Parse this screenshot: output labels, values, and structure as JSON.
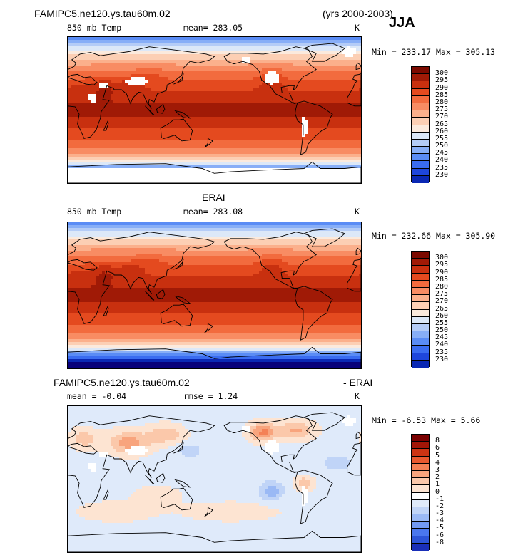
{
  "header": {
    "case_name": "FAMIPC5.ne120.ys.tau60m.02",
    "years": "(yrs 2000-2003)",
    "season": "JJA"
  },
  "colors": {
    "temp_scale": [
      "#08007a",
      "#0a28b4",
      "#1e46dc",
      "#3a6cf0",
      "#5a8cf5",
      "#87aef7",
      "#b4ccf7",
      "#dce8f8",
      "#fbeadd",
      "#fccfb4",
      "#fbb08c",
      "#f88c63",
      "#f26b3e",
      "#e44a1f",
      "#c8300f",
      "#a01a06",
      "#7c0a00"
    ],
    "diff_scale": [
      "#050579",
      "#1a2fb8",
      "#2d55d8",
      "#4a77ee",
      "#7299f2",
      "#9ab9f5",
      "#c0d4f7",
      "#dfeafa",
      "#ffffff",
      "#fde4d2",
      "#fbc8aa",
      "#f8a47d",
      "#f48156",
      "#e8592f",
      "#cc3413",
      "#a21607",
      "#7a0000"
    ]
  },
  "chart_data": [
    {
      "type": "heatmap",
      "title": "FAMIPC5.ne120.ys.tau60m.02",
      "panel_label": "850 mb Temp",
      "stat_text": "mean= 283.05",
      "units": "K",
      "minmax_text": "Min = 233.17  Max = 305.13",
      "min": 233.17,
      "max": 305.13,
      "mean": 283.05,
      "colorbar_levels": [
        "300",
        "295",
        "290",
        "285",
        "280",
        "275",
        "270",
        "265",
        "260",
        "255",
        "250",
        "245",
        "240",
        "235",
        "230"
      ]
    },
    {
      "type": "heatmap",
      "title": "ERAI",
      "panel_label": "850 mb Temp",
      "stat_text": "mean= 283.08",
      "units": "K",
      "minmax_text": "Min = 232.66  Max = 305.90",
      "min": 232.66,
      "max": 305.9,
      "mean": 283.08,
      "colorbar_levels": [
        "300",
        "295",
        "290",
        "285",
        "280",
        "275",
        "270",
        "265",
        "260",
        "255",
        "250",
        "245",
        "240",
        "235",
        "230"
      ]
    },
    {
      "type": "heatmap",
      "title_left": "FAMIPC5.ne120.ys.tau60m.02",
      "title_right": "- ERAI",
      "stat_text": "mean =   -0.04",
      "rmse_text": "rmse =    1.24",
      "units": "K",
      "minmax_text": "Min =   -6.53  Max =    5.66",
      "min": -6.53,
      "max": 5.66,
      "mean": -0.04,
      "rmse": 1.24,
      "colorbar_levels": [
        "8",
        "6",
        "5",
        "4",
        "3",
        "2",
        "1",
        "0",
        "-1",
        "-2",
        "-3",
        "-4",
        "-5",
        "-6",
        "-8"
      ]
    }
  ]
}
